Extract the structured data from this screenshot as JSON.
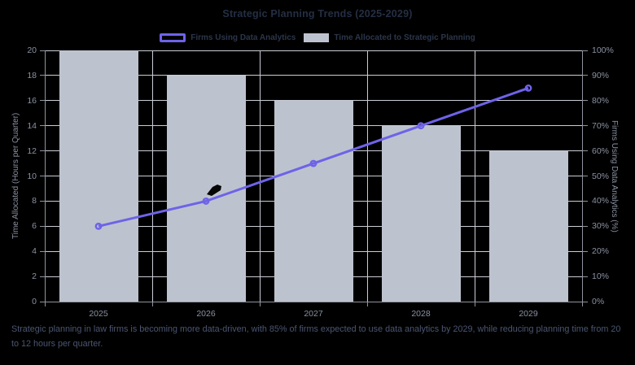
{
  "title": "Strategic Planning Trends (2025-2029)",
  "legend": [
    {
      "label": "Firms Using Data Analytics",
      "swatch": "line-outline-swatch",
      "color": "#6e63e8"
    },
    {
      "label": "Time Allocated to Strategic Planning",
      "swatch": "bar-fill-swatch",
      "color": "#bdc3ce"
    }
  ],
  "caption": "Strategic planning in law firms is becoming more data-driven, with 85% of firms expected to use data analytics by 2029, while reducing planning time from 20 to 12 hours per quarter.",
  "chart_data": {
    "type": "bar+line combo",
    "categories": [
      "2025",
      "2026",
      "2027",
      "2028",
      "2029"
    ],
    "series": [
      {
        "name": "Time Allocated to Strategic Planning",
        "type": "bar",
        "axis": "left",
        "values": [
          20,
          18,
          16,
          14,
          12
        ],
        "unit": "hours per quarter",
        "color": "#bdc3ce"
      },
      {
        "name": "Firms Using Data Analytics",
        "type": "line",
        "axis": "right",
        "values": [
          30,
          40,
          55,
          70,
          85
        ],
        "unit": "%",
        "color": "#6e63e8",
        "point_style": "open-circle"
      }
    ],
    "left_axis": {
      "title": "Time Allocated (Hours per Quarter)",
      "min": 0,
      "max": 20,
      "tick_step": 2,
      "tick_labels": [
        "0",
        "2",
        "4",
        "6",
        "8",
        "10",
        "12",
        "14",
        "16",
        "18",
        "20"
      ]
    },
    "right_axis": {
      "title": "Firms Using Data Analytics (%)",
      "min": 0,
      "max": 100,
      "tick_step": 10,
      "tick_labels": [
        "0%",
        "10%",
        "20%",
        "30%",
        "40%",
        "50%",
        "60%",
        "70%",
        "80%",
        "90%",
        "100%"
      ]
    },
    "grid": true,
    "legend_position": "top"
  },
  "colors": {
    "background": "#000000",
    "bar": "#bdc3ce",
    "line": "#6e63e8",
    "gridline": "#c9cdd5",
    "axis_line": "#8f949e",
    "tick_label": "#8a91a2",
    "axis_title": "#8a91a2",
    "title_text": "#242f44",
    "legend_text": "#2b364b",
    "caption_text": "#4b5671"
  }
}
